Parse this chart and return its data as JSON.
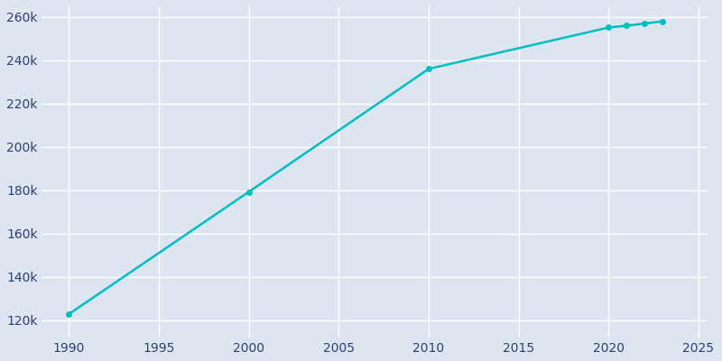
{
  "years": [
    1990,
    2000,
    2010,
    2020,
    2021,
    2022,
    2023
  ],
  "population": [
    122899,
    179322,
    236091,
    255205,
    256038,
    257031,
    258063
  ],
  "line_color": "#00BFBF",
  "marker_style": "o",
  "marker_size": 4,
  "bg_color": "#DDE5F0",
  "figure_bg": "#DDE5F0",
  "grid_color": "#FFFFFF",
  "tick_label_color": "#2E4070",
  "xlim": [
    1988.5,
    2025.5
  ],
  "ylim": [
    112000,
    265000
  ],
  "xticks": [
    1990,
    1995,
    2000,
    2005,
    2010,
    2015,
    2020,
    2025
  ],
  "yticks": [
    120000,
    140000,
    160000,
    180000,
    200000,
    220000,
    240000,
    260000
  ],
  "linewidth": 1.8
}
